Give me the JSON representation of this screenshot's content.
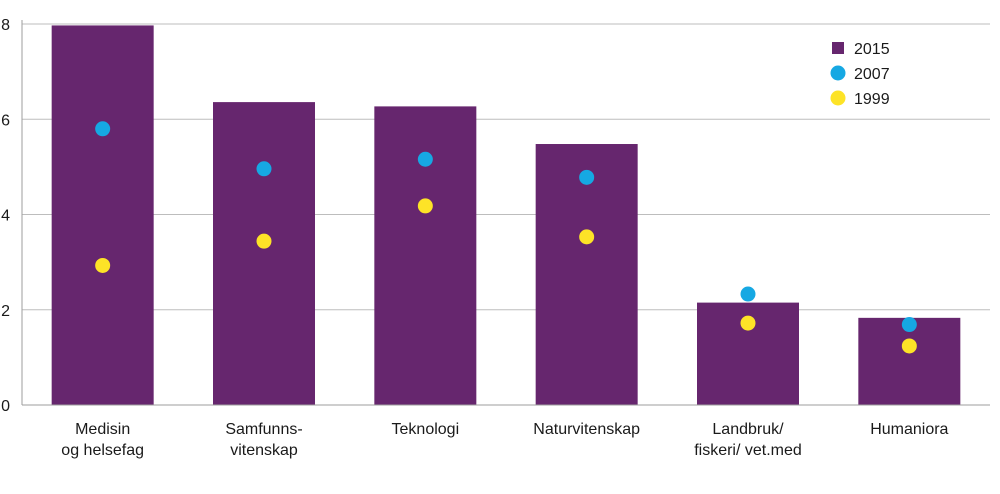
{
  "chart_data": {
    "type": "bar",
    "title": "",
    "xlabel": "",
    "ylabel": "",
    "ylim": [
      0,
      8
    ],
    "yticks": [
      0,
      2,
      4,
      6,
      8
    ],
    "grid": true,
    "legend_position": "top-right",
    "categories": [
      [
        "Medisin",
        "og helsefag"
      ],
      [
        "Samfunns-",
        "vitenskap"
      ],
      [
        "Teknologi"
      ],
      [
        "Naturvitenskap"
      ],
      [
        "Landbruk/",
        "fiskeri/ vet.med"
      ],
      [
        "Humaniora"
      ]
    ],
    "series": [
      {
        "name": "2015",
        "kind": "bar",
        "color": "#66266e",
        "marker": "square",
        "values": [
          7.97,
          6.36,
          6.27,
          5.48,
          2.15,
          1.83
        ]
      },
      {
        "name": "2007",
        "kind": "point",
        "color": "#16a8e3",
        "marker": "circle",
        "values": [
          5.8,
          4.96,
          5.16,
          4.78,
          2.33,
          1.69
        ]
      },
      {
        "name": "1999",
        "kind": "point",
        "color": "#fde327",
        "marker": "circle",
        "values": [
          2.93,
          3.44,
          4.18,
          3.53,
          1.72,
          1.24
        ]
      }
    ]
  }
}
